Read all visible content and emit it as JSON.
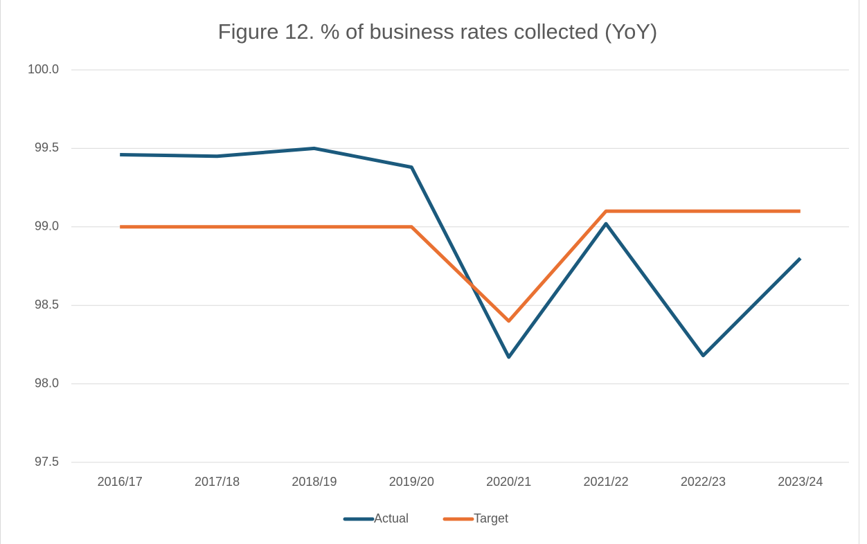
{
  "chart_data": {
    "type": "line",
    "title": "Figure 12. % of business rates collected (YoY)",
    "categories": [
      "2016/17",
      "2017/18",
      "2018/19",
      "2019/20",
      "2020/21",
      "2021/22",
      "2022/23",
      "2023/24"
    ],
    "series": [
      {
        "name": "Actual",
        "color": "#1b5a7d",
        "values": [
          99.46,
          99.45,
          99.5,
          99.38,
          98.17,
          99.02,
          98.18,
          98.8
        ]
      },
      {
        "name": "Target",
        "color": "#e97132",
        "values": [
          99,
          99,
          99,
          99,
          98.4,
          99.1,
          99.1,
          99.1
        ]
      }
    ],
    "ylim": [
      97.5,
      100
    ],
    "yticks": [
      97.5,
      {
        "value": 98,
        "label": "98.0"
      },
      98.5,
      {
        "value": 99,
        "label": "99.0"
      },
      99.5,
      {
        "value": 100,
        "label": "100.0"
      }
    ],
    "grid": true,
    "legend": "bottom"
  }
}
